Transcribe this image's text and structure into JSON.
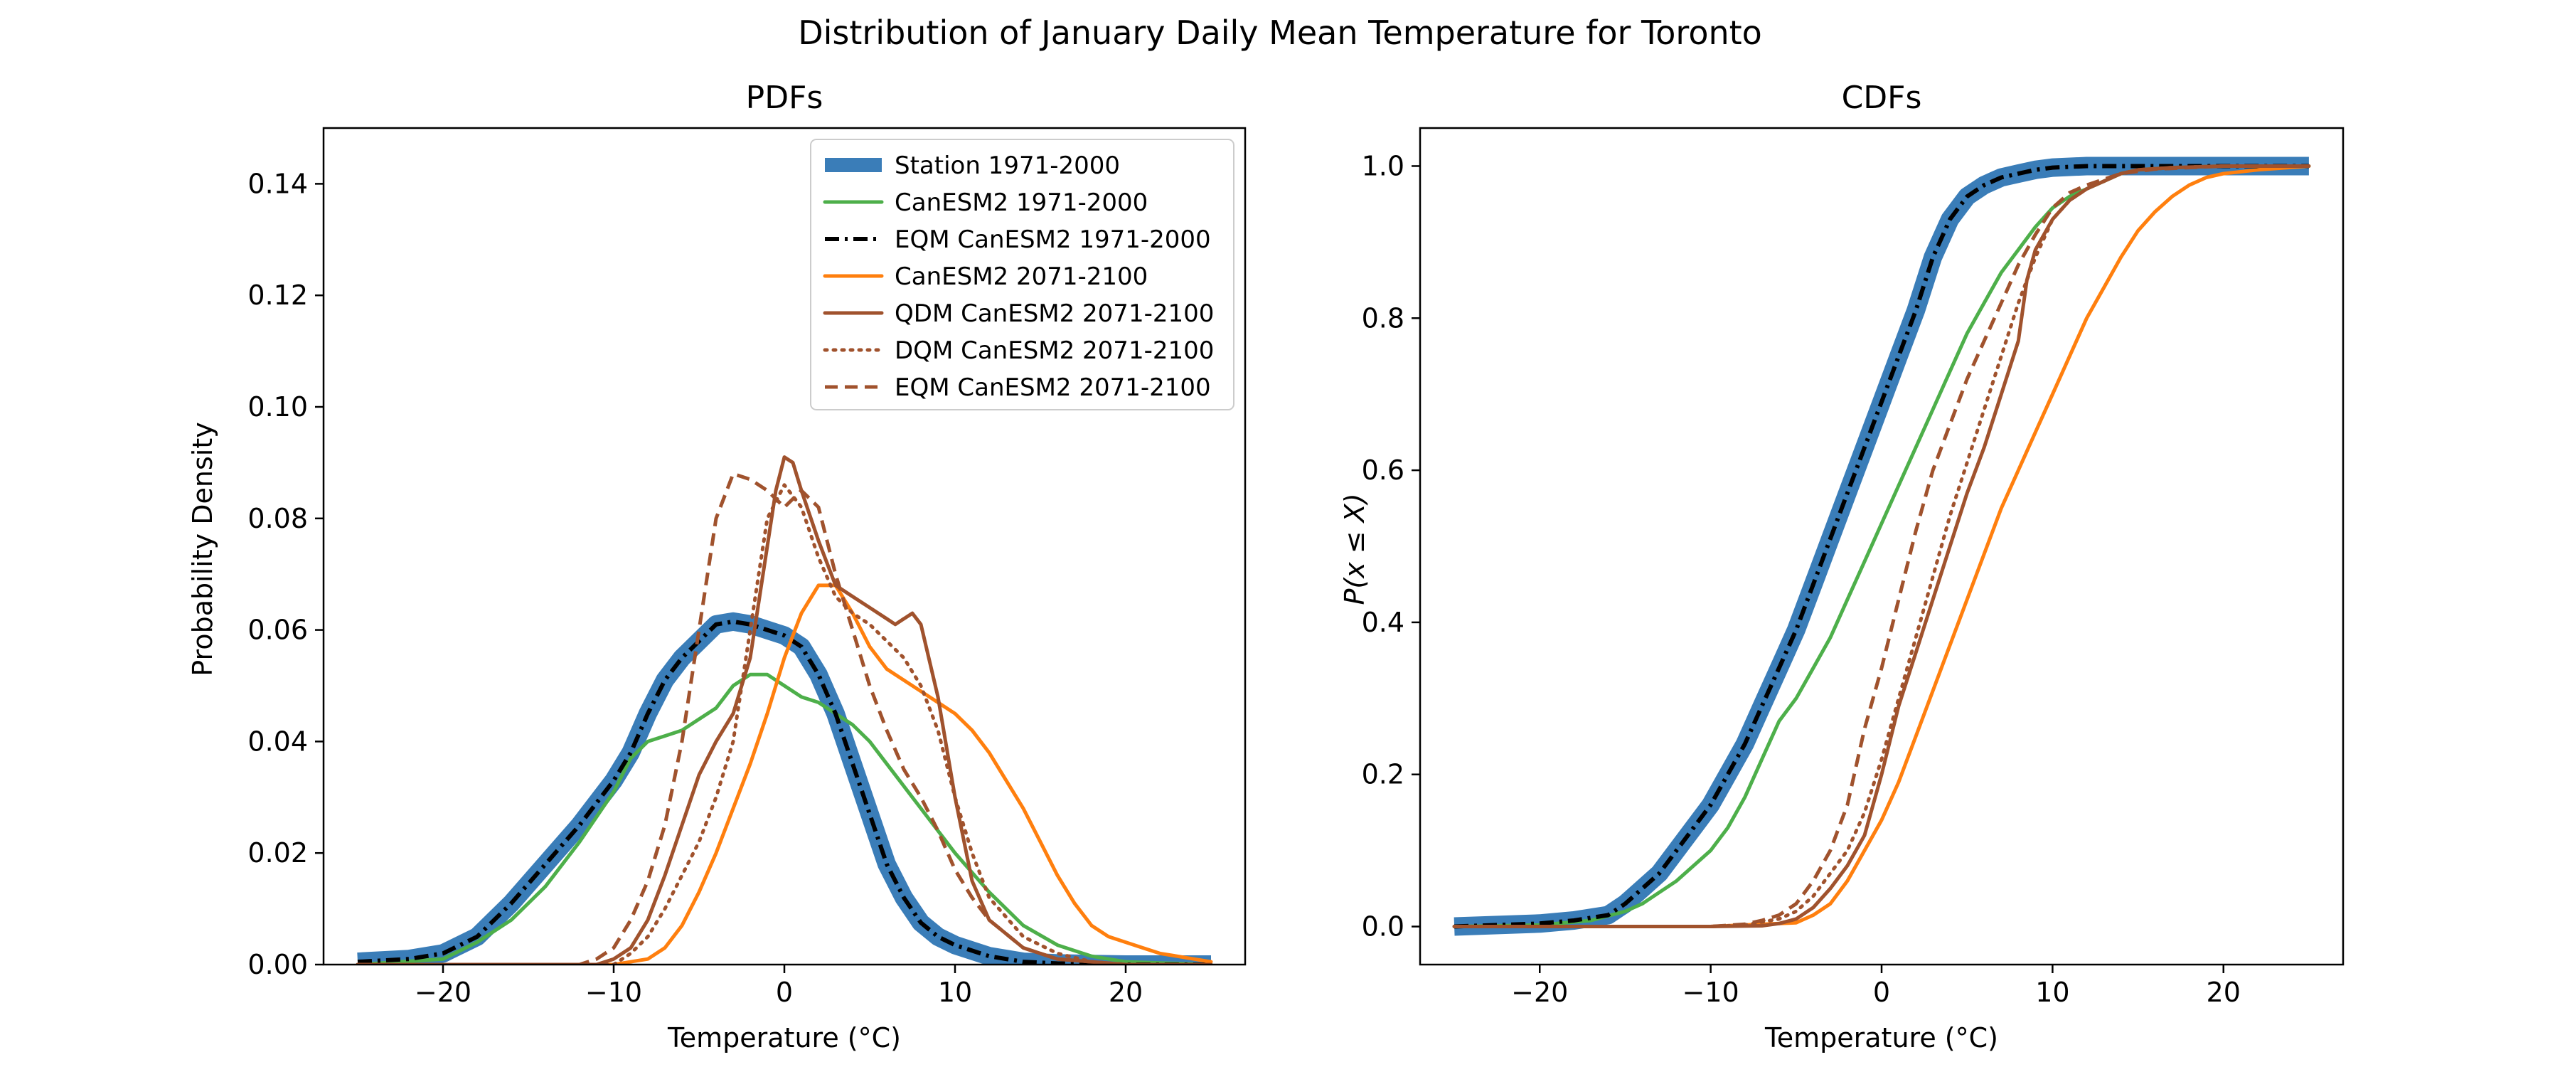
{
  "suptitle": "Distribution of January Daily Mean Temperature for Toronto",
  "chart_data": [
    {
      "type": "line",
      "title": "PDFs",
      "xlabel": "Temperature (°C)",
      "ylabel": "Probability Density",
      "xlim": [
        -27,
        27
      ],
      "ylim": [
        0,
        0.15
      ],
      "xticks": [
        -20,
        -10,
        0,
        10,
        20
      ],
      "xtick_labels": [
        "−20",
        "−10",
        "0",
        "10",
        "20"
      ],
      "yticks": [
        0,
        0.02,
        0.04,
        0.06,
        0.08,
        0.1,
        0.12,
        0.14
      ],
      "ytick_labels": [
        "0.00",
        "0.02",
        "0.04",
        "0.06",
        "0.08",
        "0.10",
        "0.12",
        "0.14"
      ],
      "grid": false,
      "legend_position": "top-right",
      "series": [
        {
          "name": "Station 1971-2000",
          "color": "#3a7db8",
          "style": "thick",
          "x": [
            -25,
            -22,
            -20,
            -18,
            -16,
            -14,
            -12,
            -10,
            -9,
            -8,
            -7,
            -6,
            -5,
            -4,
            -3,
            -2,
            -1,
            0,
            1,
            2,
            3,
            4,
            5,
            6,
            7,
            8,
            9,
            10,
            12,
            14,
            16,
            18,
            20,
            25
          ],
          "y": [
            0.0005,
            0.001,
            0.002,
            0.005,
            0.011,
            0.018,
            0.025,
            0.033,
            0.038,
            0.045,
            0.051,
            0.055,
            0.058,
            0.061,
            0.0615,
            0.061,
            0.06,
            0.059,
            0.057,
            0.052,
            0.045,
            0.036,
            0.027,
            0.018,
            0.012,
            0.0075,
            0.005,
            0.0035,
            0.0015,
            0.0005,
            0.0002,
            0.0001,
            0,
            0
          ]
        },
        {
          "name": "CanESM2 1971-2000",
          "color": "#4daf4a",
          "style": "solid",
          "x": [
            -25,
            -20,
            -18,
            -16,
            -14,
            -12,
            -10,
            -9,
            -8,
            -7,
            -6,
            -5,
            -4,
            -3,
            -2,
            -1,
            0,
            1,
            2,
            3,
            4,
            5,
            6,
            8,
            10,
            12,
            14,
            16,
            18,
            20,
            25
          ],
          "y": [
            0,
            0.001,
            0.004,
            0.008,
            0.014,
            0.022,
            0.031,
            0.037,
            0.04,
            0.041,
            0.042,
            0.044,
            0.046,
            0.05,
            0.052,
            0.052,
            0.05,
            0.048,
            0.047,
            0.045,
            0.043,
            0.04,
            0.036,
            0.028,
            0.02,
            0.013,
            0.007,
            0.0035,
            0.0015,
            0.0005,
            0
          ]
        },
        {
          "name": "EQM CanESM2 1971-2000",
          "color": "#000000",
          "style": "dashdot",
          "x": [
            -25,
            -22,
            -20,
            -18,
            -16,
            -14,
            -12,
            -10,
            -9,
            -8,
            -7,
            -6,
            -5,
            -4,
            -3,
            -2,
            -1,
            0,
            1,
            2,
            3,
            4,
            5,
            6,
            7,
            8,
            9,
            10,
            12,
            14,
            16,
            18,
            20,
            25
          ],
          "y": [
            0.0005,
            0.001,
            0.002,
            0.005,
            0.011,
            0.018,
            0.025,
            0.033,
            0.038,
            0.045,
            0.051,
            0.055,
            0.058,
            0.061,
            0.0615,
            0.061,
            0.06,
            0.059,
            0.057,
            0.052,
            0.045,
            0.036,
            0.027,
            0.018,
            0.012,
            0.0075,
            0.005,
            0.0035,
            0.0015,
            0.0005,
            0.0002,
            0.0001,
            0,
            0
          ]
        },
        {
          "name": "CanESM2 2071-2100",
          "color": "#ff7f0e",
          "style": "solid",
          "x": [
            -25,
            -10,
            -8,
            -7,
            -6,
            -5,
            -4,
            -3,
            -2,
            -1,
            0,
            1,
            2,
            3,
            4,
            5,
            6,
            7,
            8,
            9,
            10,
            11,
            12,
            13,
            14,
            15,
            16,
            17,
            18,
            19,
            20,
            21,
            22,
            23,
            24,
            25
          ],
          "y": [
            0,
            0,
            0.001,
            0.003,
            0.007,
            0.013,
            0.02,
            0.028,
            0.036,
            0.045,
            0.055,
            0.063,
            0.068,
            0.068,
            0.063,
            0.057,
            0.053,
            0.051,
            0.049,
            0.047,
            0.045,
            0.042,
            0.038,
            0.033,
            0.028,
            0.022,
            0.016,
            0.011,
            0.007,
            0.005,
            0.004,
            0.003,
            0.002,
            0.0015,
            0.001,
            0.0005
          ]
        },
        {
          "name": "QDM CanESM2 2071-2100",
          "color": "#a0522d",
          "style": "solid",
          "x": [
            -25,
            -11,
            -10,
            -9,
            -8,
            -7,
            -6,
            -5,
            -4,
            -3,
            -2,
            -1,
            -0.5,
            0,
            0.5,
            1,
            2,
            3,
            4,
            5,
            6,
            6.5,
            7,
            7.5,
            8,
            9,
            10,
            11,
            12,
            14,
            16,
            18,
            20,
            25
          ],
          "y": [
            0,
            0,
            0.001,
            0.003,
            0.008,
            0.016,
            0.025,
            0.034,
            0.04,
            0.045,
            0.055,
            0.075,
            0.085,
            0.091,
            0.09,
            0.085,
            0.076,
            0.068,
            0.066,
            0.064,
            0.062,
            0.061,
            0.062,
            0.063,
            0.061,
            0.048,
            0.03,
            0.015,
            0.008,
            0.003,
            0.001,
            0.0005,
            0,
            0
          ]
        },
        {
          "name": "DQM CanESM2 2071-2100",
          "color": "#a0522d",
          "style": "dotted",
          "x": [
            -25,
            -10,
            -9,
            -8,
            -7,
            -6,
            -5,
            -4,
            -3,
            -2,
            -1,
            0,
            1,
            2,
            3,
            4,
            5,
            6,
            7,
            8,
            9,
            10,
            11,
            12,
            14,
            16,
            18,
            20,
            25
          ],
          "y": [
            0,
            0,
            0.002,
            0.005,
            0.01,
            0.016,
            0.022,
            0.03,
            0.04,
            0.06,
            0.08,
            0.086,
            0.082,
            0.073,
            0.066,
            0.063,
            0.061,
            0.058,
            0.055,
            0.05,
            0.042,
            0.03,
            0.02,
            0.012,
            0.005,
            0.002,
            0.0005,
            0,
            0
          ]
        },
        {
          "name": "EQM CanESM2 2071-2100",
          "color": "#a0522d",
          "style": "dashed",
          "x": [
            -25,
            -12,
            -11,
            -10,
            -9,
            -8,
            -7,
            -6,
            -5,
            -4,
            -3,
            -2,
            -1,
            0,
            1,
            2,
            3,
            4,
            5,
            6,
            7,
            8,
            9,
            10,
            11,
            12,
            14,
            16,
            18,
            20,
            25
          ],
          "y": [
            0,
            0,
            0.001,
            0.003,
            0.008,
            0.015,
            0.025,
            0.04,
            0.06,
            0.08,
            0.088,
            0.087,
            0.085,
            0.082,
            0.085,
            0.082,
            0.07,
            0.06,
            0.05,
            0.042,
            0.035,
            0.03,
            0.024,
            0.017,
            0.012,
            0.008,
            0.003,
            0.001,
            0.0005,
            0,
            0
          ]
        }
      ]
    },
    {
      "type": "line",
      "title": "CDFs",
      "xlabel": "Temperature (°C)",
      "ylabel": "P(x ≤ X)",
      "xlim": [
        -27,
        27
      ],
      "ylim": [
        -0.05,
        1.05
      ],
      "xticks": [
        -20,
        -10,
        0,
        10,
        20
      ],
      "xtick_labels": [
        "−20",
        "−10",
        "0",
        "10",
        "20"
      ],
      "yticks": [
        0,
        0.2,
        0.4,
        0.6,
        0.8,
        1.0
      ],
      "ytick_labels": [
        "0.0",
        "0.2",
        "0.4",
        "0.6",
        "0.8",
        "1.0"
      ],
      "grid": false,
      "series": [
        {
          "name": "Station 1971-2000",
          "color": "#3a7db8",
          "style": "thick",
          "x": [
            -25,
            -20,
            -18,
            -16,
            -15,
            -14,
            -13,
            -12,
            -11,
            -10,
            -9,
            -8,
            -7,
            -6,
            -5,
            -4,
            -3,
            -2,
            -1,
            0,
            1,
            2,
            3,
            4,
            5,
            6,
            7,
            8,
            9,
            10,
            12,
            15,
            20,
            25
          ],
          "y": [
            0,
            0.004,
            0.008,
            0.015,
            0.03,
            0.05,
            0.07,
            0.1,
            0.13,
            0.16,
            0.2,
            0.24,
            0.29,
            0.34,
            0.39,
            0.45,
            0.51,
            0.57,
            0.63,
            0.69,
            0.75,
            0.81,
            0.88,
            0.93,
            0.96,
            0.975,
            0.985,
            0.99,
            0.995,
            0.998,
            1,
            1,
            1,
            1
          ]
        },
        {
          "name": "CanESM2 1971-2000",
          "color": "#4daf4a",
          "style": "solid",
          "x": [
            -25,
            -20,
            -17,
            -15,
            -14,
            -13,
            -12,
            -11,
            -10,
            -9,
            -8,
            -7,
            -6,
            -5,
            -4,
            -3,
            -2,
            -1,
            0,
            1,
            2,
            3,
            4,
            5,
            6,
            7,
            8,
            9,
            10,
            11,
            12,
            13,
            14,
            15,
            17,
            20,
            25
          ],
          "y": [
            0,
            0.002,
            0.008,
            0.02,
            0.03,
            0.045,
            0.06,
            0.08,
            0.1,
            0.13,
            0.17,
            0.22,
            0.27,
            0.3,
            0.34,
            0.38,
            0.43,
            0.48,
            0.53,
            0.58,
            0.63,
            0.68,
            0.73,
            0.78,
            0.82,
            0.86,
            0.89,
            0.92,
            0.945,
            0.96,
            0.97,
            0.98,
            0.99,
            0.995,
            0.998,
            1,
            1
          ]
        },
        {
          "name": "EQM CanESM2 1971-2000",
          "color": "#000000",
          "style": "dashdot",
          "x": [
            -25,
            -20,
            -18,
            -16,
            -15,
            -14,
            -13,
            -12,
            -11,
            -10,
            -9,
            -8,
            -7,
            -6,
            -5,
            -4,
            -3,
            -2,
            -1,
            0,
            1,
            2,
            3,
            4,
            5,
            6,
            7,
            8,
            9,
            10,
            12,
            15,
            20,
            25
          ],
          "y": [
            0,
            0.004,
            0.008,
            0.015,
            0.03,
            0.05,
            0.07,
            0.1,
            0.13,
            0.16,
            0.2,
            0.24,
            0.29,
            0.34,
            0.39,
            0.45,
            0.51,
            0.57,
            0.63,
            0.69,
            0.75,
            0.81,
            0.88,
            0.93,
            0.96,
            0.975,
            0.985,
            0.99,
            0.995,
            0.998,
            1,
            1,
            1,
            1
          ]
        },
        {
          "name": "CanESM2 2071-2100",
          "color": "#ff7f0e",
          "style": "solid",
          "x": [
            -25,
            -10,
            -5,
            -4,
            -3,
            -2,
            -1,
            0,
            1,
            2,
            3,
            4,
            5,
            6,
            7,
            8,
            9,
            10,
            11,
            12,
            13,
            14,
            15,
            16,
            17,
            18,
            19,
            20,
            22,
            25
          ],
          "y": [
            0,
            0,
            0.005,
            0.015,
            0.03,
            0.06,
            0.1,
            0.14,
            0.19,
            0.25,
            0.31,
            0.37,
            0.43,
            0.49,
            0.55,
            0.6,
            0.65,
            0.7,
            0.75,
            0.8,
            0.84,
            0.88,
            0.915,
            0.94,
            0.96,
            0.975,
            0.985,
            0.99,
            0.995,
            1
          ]
        },
        {
          "name": "QDM CanESM2 2071-2100",
          "color": "#a0522d",
          "style": "solid",
          "x": [
            -25,
            -10,
            -7,
            -6,
            -5,
            -4,
            -3,
            -2,
            -1,
            0,
            1,
            2,
            3,
            4,
            5,
            6,
            7,
            8,
            8.5,
            9,
            10,
            11,
            12,
            13,
            14,
            15,
            17,
            20,
            25
          ],
          "y": [
            0,
            0,
            0.001,
            0.004,
            0.01,
            0.025,
            0.05,
            0.08,
            0.12,
            0.2,
            0.29,
            0.36,
            0.43,
            0.5,
            0.57,
            0.63,
            0.7,
            0.77,
            0.85,
            0.89,
            0.93,
            0.955,
            0.97,
            0.98,
            0.99,
            0.995,
            0.998,
            1,
            1
          ]
        },
        {
          "name": "DQM CanESM2 2071-2100",
          "color": "#a0522d",
          "style": "dotted",
          "x": [
            -25,
            -10,
            -8,
            -6,
            -5,
            -4,
            -3,
            -2,
            -1,
            0,
            1,
            2,
            3,
            4,
            5,
            6,
            7,
            8,
            9,
            10,
            11,
            12,
            13,
            14,
            15,
            17,
            20,
            25
          ],
          "y": [
            0,
            0,
            0.002,
            0.01,
            0.02,
            0.04,
            0.07,
            0.1,
            0.15,
            0.22,
            0.3,
            0.38,
            0.46,
            0.54,
            0.61,
            0.68,
            0.75,
            0.82,
            0.88,
            0.93,
            0.955,
            0.97,
            0.98,
            0.99,
            0.995,
            0.998,
            1,
            1
          ]
        },
        {
          "name": "EQM CanESM2 2071-2100",
          "color": "#a0522d",
          "style": "dashed",
          "x": [
            -25,
            -10,
            -8,
            -7,
            -6,
            -5,
            -4,
            -3,
            -2,
            -1,
            0,
            1,
            2,
            3,
            4,
            5,
            6,
            7,
            8,
            9,
            10,
            11,
            12,
            14,
            16,
            20,
            25
          ],
          "y": [
            0,
            0,
            0.003,
            0.008,
            0.015,
            0.03,
            0.06,
            0.1,
            0.16,
            0.26,
            0.34,
            0.43,
            0.52,
            0.6,
            0.66,
            0.72,
            0.77,
            0.82,
            0.87,
            0.91,
            0.945,
            0.965,
            0.975,
            0.99,
            0.996,
            1,
            1
          ]
        }
      ]
    }
  ]
}
